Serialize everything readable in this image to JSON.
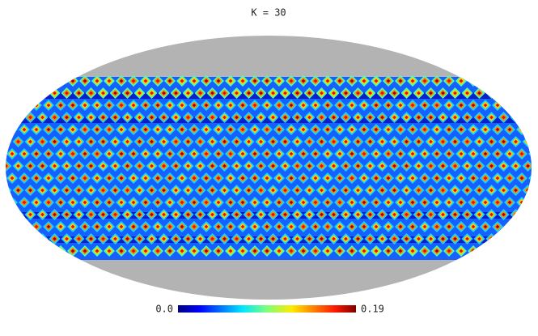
{
  "title": "K = 30",
  "colorbar": {
    "min_label": "0.0",
    "max_label": "0.19"
  }
}
